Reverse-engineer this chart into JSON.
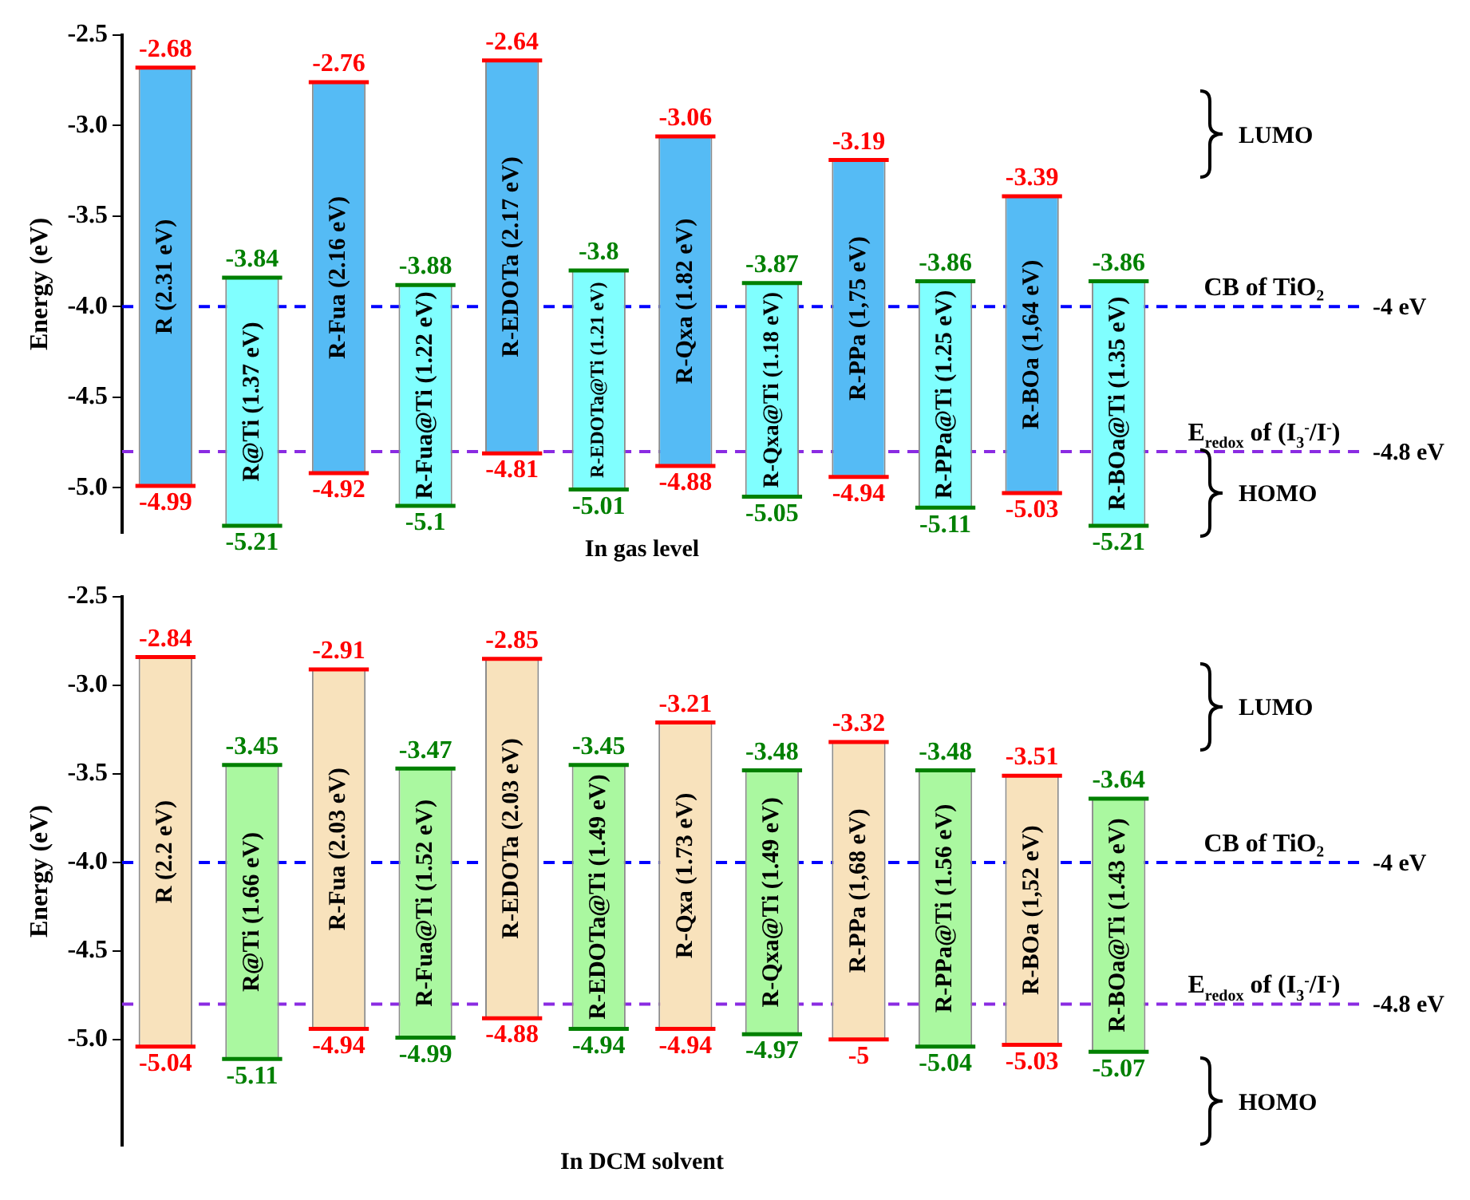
{
  "chart_data": [
    {
      "type": "bar",
      "ylabel": "Energy (eV)",
      "tick_labels": "y",
      "categories": [
        "R (2.31 eV)",
        "R@Ti (1.37 eV)",
        "R-Fua (2.16 eV)",
        "R-Fua@Ti (1.22 eV)",
        "R-EDOTa (2.17 eV)",
        "R-EDOTa@Ti (1.21 eV)",
        "R-Qxa (1.82 eV)",
        "R-Qxa@Ti (1.18 eV)",
        "R-PPa (1,75 eV)",
        "R-PPa@Ti (1.25 eV)",
        "R-BOa (1,64 eV)",
        "R-BOa@Ti (1.35 eV)"
      ],
      "base": [
        -4.99,
        -5.21,
        -4.92,
        -5.1,
        -4.81,
        -5.01,
        -4.88,
        -5.05,
        -4.94,
        -5.11,
        -5.03,
        -5.21
      ],
      "values": [
        2.31,
        1.37,
        2.16,
        1.22,
        2.17,
        1.21,
        1.82,
        1.18,
        1.75,
        1.25,
        1.64,
        1.35
      ],
      "colors": [
        "#55bbf5",
        "#80ffff",
        "#55bbf5",
        "#80ffff",
        "#55bbf5",
        "#80ffff",
        "#55bbf5",
        "#80ffff",
        "#55bbf5",
        "#80ffff",
        "#55bbf5",
        "#80ffff"
      ],
      "ylim": [
        -5.25,
        -2.5
      ],
      "yticks": [
        -2.5,
        {
          "value": -3,
          "label": "-3.0"
        },
        -3.5,
        {
          "value": -4,
          "label": "-4.0"
        },
        -4.5,
        {
          "value": -5,
          "label": "-5.0"
        }
      ],
      "ref_lines": [
        {
          "axis": "y",
          "value": -4,
          "label": "CB of TiO₂",
          "color": "#0000ff",
          "line_style": "dashed"
        },
        {
          "axis": "y",
          "value": -4.8,
          "label": "E$_{redox}$ of (I$_{3}$$^{-}$/I$^{-}$)",
          "color": "#8a2be2",
          "line_style": "dashed"
        }
      ],
      "annotations": [
        {
          "text": "-2.68",
          "x": "R (2.31 eV)",
          "y": -2.68
        },
        {
          "text": "-4.99",
          "x": "R (2.31 eV)",
          "y": -4.99
        },
        {
          "text": "-3.84",
          "x": "R@Ti (1.37 eV)",
          "y": -3.84
        },
        {
          "text": "-5.21",
          "x": "R@Ti (1.37 eV)",
          "y": -5.21
        },
        {
          "text": "-2.76",
          "x": "R-Fua (2.16 eV)",
          "y": -2.76
        },
        {
          "text": "-4.92",
          "x": "R-Fua (2.16 eV)",
          "y": -4.92
        },
        {
          "text": "-3.88",
          "x": "R-Fua@Ti (1.22 eV)",
          "y": -3.88
        },
        {
          "text": "-5.1",
          "x": "R-Fua@Ti (1.22 eV)",
          "y": -5.1
        },
        {
          "text": "-2.64",
          "x": "R-EDOTa (2.17 eV)",
          "y": -2.64
        },
        {
          "text": "-4.81",
          "x": "R-EDOTa (2.17 eV)",
          "y": -4.81
        },
        {
          "text": "-3.8",
          "x": "R-EDOTa@Ti (1.21 eV)",
          "y": -3.8
        },
        {
          "text": "-5.01",
          "x": "R-EDOTa@Ti (1.21 eV)",
          "y": -5.01
        },
        {
          "text": "-3.06",
          "x": "R-Qxa (1.82 eV)",
          "y": -3.06
        },
        {
          "text": "-4.88",
          "x": "R-Qxa (1.82 eV)",
          "y": -4.88
        },
        {
          "text": "-3.87",
          "x": "R-Qxa@Ti (1.18 eV)",
          "y": -3.87
        },
        {
          "text": "-5.05",
          "x": "R-Qxa@Ti (1.18 eV)",
          "y": -5.05
        },
        {
          "text": "-3.19",
          "x": "R-PPa (1,75 eV)",
          "y": -3.19
        },
        {
          "text": "-4.94",
          "x": "R-PPa (1,75 eV)",
          "y": -4.94
        },
        {
          "text": "-3.86",
          "x": "R-PPa@Ti (1.25 eV)",
          "y": -3.86
        },
        {
          "text": "-5.11",
          "x": "R-PPa@Ti (1.25 eV)",
          "y": -5.11
        },
        {
          "text": "-3.39",
          "x": "R-BOa (1,64 eV)",
          "y": -3.39
        },
        {
          "text": "-5.03",
          "x": "R-BOa (1,64 eV)",
          "y": -5.03
        },
        {
          "text": "-3.86",
          "x": "R-BOa@Ti (1.35 eV)",
          "y": -3.86
        },
        {
          "text": "-5.21",
          "x": "R-BOa@Ti (1.35 eV)",
          "y": -5.21
        },
        "-4 eV",
        "-4.8 eV",
        "LUMO",
        "HOMO",
        "In gas level"
      ]
    },
    {
      "type": "bar",
      "ylabel": "Energy (eV)",
      "tick_labels": "y",
      "categories": [
        "R (2.2 eV)",
        "R@Ti (1.66 eV)",
        "R-Fua (2.03 eV)",
        "R-Fua@Ti (1.52 eV)",
        "R-EDOTa (2.03 eV)",
        "R-EDOTa@Ti (1.49 eV)",
        "R-Qxa (1.73 eV)",
        "R-Qxa@Ti (1.49 eV)",
        "R-PPa (1,68 eV)",
        "R-PPa@Ti (1.56 eV)",
        "R-BOa (1,52 eV)",
        "R-BOa@Ti (1.43 eV)"
      ],
      "base": [
        -5.04,
        -5.11,
        -4.94,
        -4.99,
        -4.88,
        -4.94,
        -4.94,
        -4.97,
        -5,
        -5.04,
        -5.03,
        -5.07
      ],
      "values": [
        2.2,
        1.66,
        2.03,
        1.52,
        2.03,
        1.49,
        1.73,
        1.49,
        1.68,
        1.56,
        1.52,
        1.43
      ],
      "colors": [
        "#f8e2bc",
        "#aaf8a0",
        "#f8e2bc",
        "#aaf8a0",
        "#f8e2bc",
        "#aaf8a0",
        "#f8e2bc",
        "#aaf8a0",
        "#f8e2bc",
        "#aaf8a0",
        "#f8e2bc",
        "#aaf8a0"
      ],
      "ylim": [
        -5.6,
        -2.5
      ],
      "yticks": [
        -2.5,
        {
          "value": -3,
          "label": "-3.0"
        },
        -3.5,
        {
          "value": -4,
          "label": "-4.0"
        },
        -4.5,
        {
          "value": -5,
          "label": "-5.0"
        }
      ],
      "ref_lines": [
        {
          "axis": "y",
          "value": -4,
          "label": "CB of TiO₂",
          "color": "#0000ff",
          "line_style": "dashed"
        },
        {
          "axis": "y",
          "value": -4.8,
          "label": "E$_{redox}$ of (I$_{3}$$^{-}$/I$^{-}$)",
          "color": "#8a2be2",
          "line_style": "dashed"
        }
      ],
      "annotations": [
        {
          "text": "-2.84",
          "x": "R (2.2 eV)",
          "y": -2.84
        },
        {
          "text": "-5.04",
          "x": "R (2.2 eV)",
          "y": -5.04
        },
        {
          "text": "-3.45",
          "x": "R@Ti (1.66 eV)",
          "y": -3.45
        },
        {
          "text": "-5.11",
          "x": "R@Ti (1.66 eV)",
          "y": -5.11
        },
        {
          "text": "-2.91",
          "x": "R-Fua (2.03 eV)",
          "y": -2.91
        },
        {
          "text": "-4.94",
          "x": "R-Fua (2.03 eV)",
          "y": -4.94
        },
        {
          "text": "-3.47",
          "x": "R-Fua@Ti (1.52 eV)",
          "y": -3.47
        },
        {
          "text": "-4.99",
          "x": "R-Fua@Ti (1.52 eV)",
          "y": -4.99
        },
        {
          "text": "-2.85",
          "x": "R-EDOTa (2.03 eV)",
          "y": -2.85
        },
        {
          "text": "-4.88",
          "x": "R-EDOTa (2.03 eV)",
          "y": -4.88
        },
        {
          "text": "-3.45",
          "x": "R-EDOTa@Ti (1.49 eV)",
          "y": -3.45
        },
        {
          "text": "-4.94",
          "x": "R-EDOTa@Ti (1.49 eV)",
          "y": -4.94
        },
        {
          "text": "-3.21",
          "x": "R-Qxa (1.73 eV)",
          "y": -3.21
        },
        {
          "text": "-4.94",
          "x": "R-Qxa (1.73 eV)",
          "y": -4.94
        },
        {
          "text": "-3.48",
          "x": "R-Qxa@Ti (1.49 eV)",
          "y": -3.48
        },
        {
          "text": "-4.97",
          "x": "R-Qxa@Ti (1.49 eV)",
          "y": -4.97
        },
        {
          "text": "-3.32",
          "x": "R-PPa (1,68 eV)",
          "y": -3.32
        },
        {
          "text": "-5",
          "x": "R-PPa (1,68 eV)",
          "y": -5
        },
        {
          "text": "-3.48",
          "x": "R-PPa@Ti (1.56 eV)",
          "y": -3.48
        },
        {
          "text": "-5.04",
          "x": "R-PPa@Ti (1.56 eV)",
          "y": -5.04
        },
        {
          "text": "-3.51",
          "x": "R-BOa (1,52 eV)",
          "y": -3.51
        },
        {
          "text": "-5.03",
          "x": "R-BOa (1,52 eV)",
          "y": -5.03
        },
        {
          "text": "-3.64",
          "x": "R-BOa@Ti (1.43 eV)",
          "y": -3.64
        },
        {
          "text": "-5.07",
          "x": "R-BOa@Ti (1.43 eV)",
          "y": -5.07
        },
        "-4 eV",
        "-4.8 eV",
        "LUMO",
        "HOMO",
        "In DCM solvent"
      ]
    }
  ]
}
